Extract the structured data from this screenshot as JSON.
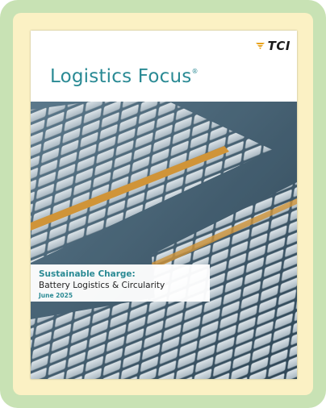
{
  "logo": {
    "text": "TCI"
  },
  "cover": {
    "title": "Logistics Focus",
    "title_mark": "®"
  },
  "feature": {
    "headline": "Sustainable Charge:",
    "subtitle": "Battery Logistics & Circularity",
    "date": "June 2025"
  }
}
